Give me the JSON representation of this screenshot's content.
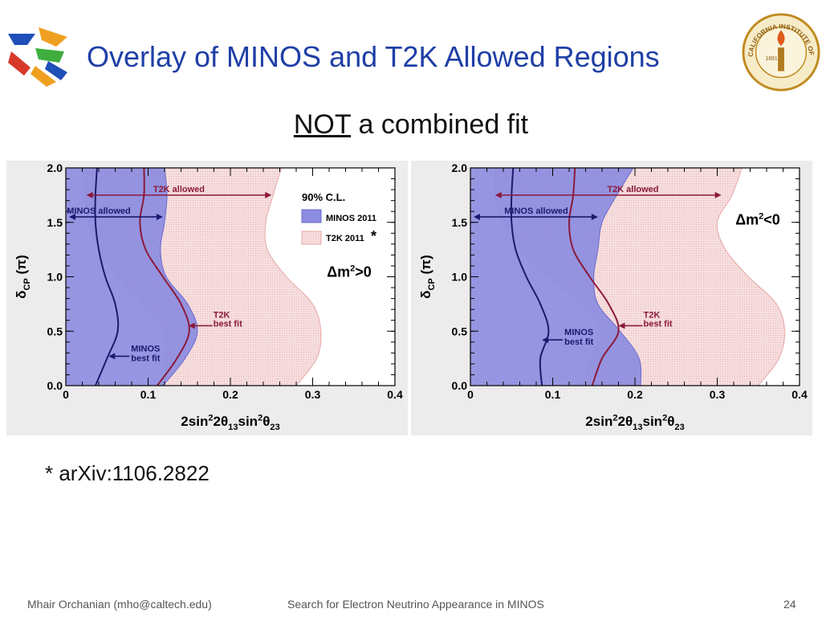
{
  "slide": {
    "title": "Overlay of MINOS and T2K Allowed Regions",
    "subtitle_underlined": "NOT",
    "subtitle_rest": " a combined fit",
    "footnote": "* arXiv:1106.2822",
    "footer": {
      "author": "Mhair Orchanian (mho@caltech.edu)",
      "talk": "Search for Electron Neutrino Appearance in MINOS",
      "page": "24"
    },
    "seal": {
      "text": "CALIFORNIA INSTITUTE OF TECHNOLOGY",
      "year": "1891"
    }
  },
  "colors": {
    "minos_fill": "#8c8ce0",
    "minos_line": "#1a1a6e",
    "t2k_fill": "#f6dede",
    "t2k_edge": "#e8a8a8",
    "t2k_line": "#8b1a3a",
    "title": "#1f3fa6",
    "panel_bg": "#ececec"
  },
  "chart_data": [
    {
      "type": "area",
      "panel": "left",
      "xlabel": "2sin²2θ₁₃sin²θ₂₃",
      "ylabel": "δCP (π)",
      "xlim": [
        0,
        0.4
      ],
      "ylim": [
        0,
        2
      ],
      "xticks": [
        0,
        0.1,
        0.2,
        0.3,
        0.4
      ],
      "xtick_labels": [
        "0",
        "0.1",
        "0.2",
        "0.3",
        "0.4"
      ],
      "yticks": [
        0,
        0.5,
        1.0,
        1.5,
        2.0
      ],
      "ytick_labels": [
        "0.0",
        "0.5",
        "1.0",
        "1.5",
        "2.0"
      ],
      "annotation": "Δm²>0",
      "legend": {
        "position": "top-right",
        "header": "90% C.L.",
        "entries": [
          {
            "label": "MINOS 2011"
          },
          {
            "label": "T2K 2011",
            "suffix": "*"
          }
        ]
      },
      "y": [
        0.0,
        0.25,
        0.5,
        0.75,
        1.0,
        1.25,
        1.5,
        1.75,
        2.0
      ],
      "series": [
        {
          "name": "MINOS 2011",
          "x_low": [
            0.0,
            0.0,
            0.0,
            0.0,
            0.0,
            0.0,
            0.0,
            0.0,
            0.0
          ],
          "x_high": [
            0.118,
            0.145,
            0.16,
            0.148,
            0.122,
            0.115,
            0.12,
            0.123,
            0.12
          ]
        },
        {
          "name": "T2K 2011",
          "x_low": [
            0.12,
            0.121,
            0.12,
            0.095,
            0.063,
            0.04,
            0.028,
            0.024,
            0.025
          ],
          "x_high": [
            0.28,
            0.305,
            0.31,
            0.3,
            0.268,
            0.245,
            0.243,
            0.252,
            0.262
          ]
        }
      ],
      "best_fit": [
        {
          "name": "MINOS best fit",
          "x": [
            0.036,
            0.05,
            0.063,
            0.06,
            0.048,
            0.04,
            0.036,
            0.036,
            0.038
          ]
        },
        {
          "name": "T2K best fit",
          "x": [
            0.111,
            0.135,
            0.15,
            0.14,
            0.118,
            0.097,
            0.09,
            0.095,
            0.095
          ]
        }
      ],
      "labels": {
        "minos_allowed": "MINOS allowed",
        "t2k_allowed": "T2K allowed",
        "minos_best_1": "MINOS",
        "minos_best_2": "best fit",
        "t2k_best_1": "T2K",
        "t2k_best_2": "best fit"
      }
    },
    {
      "type": "area",
      "panel": "right",
      "xlabel": "2sin²2θ₁₃sin²θ₂₃",
      "ylabel": "δCP (π)",
      "xlim": [
        0,
        0.4
      ],
      "ylim": [
        0,
        2
      ],
      "xticks": [
        0,
        0.1,
        0.2,
        0.3,
        0.4
      ],
      "xtick_labels": [
        "0",
        "0.1",
        "0.2",
        "0.3",
        "0.4"
      ],
      "yticks": [
        0,
        0.5,
        1.0,
        1.5,
        2.0
      ],
      "ytick_labels": [
        "0.0",
        "0.5",
        "1.0",
        "1.5",
        "2.0"
      ],
      "annotation": "Δm²<0",
      "y": [
        0.0,
        0.25,
        0.5,
        0.75,
        1.0,
        1.25,
        1.5,
        1.75,
        2.0
      ],
      "series": [
        {
          "name": "MINOS 2011",
          "x_low": [
            0.0,
            0.0,
            0.0,
            0.0,
            0.0,
            0.0,
            0.0,
            0.0,
            0.0
          ],
          "x_high": [
            0.207,
            0.205,
            0.182,
            0.155,
            0.15,
            0.155,
            0.16,
            0.178,
            0.198
          ]
        },
        {
          "name": "T2K 2011",
          "x_low": [
            0.138,
            0.146,
            0.16,
            0.134,
            0.095,
            0.062,
            0.04,
            0.03,
            0.03
          ],
          "x_high": [
            0.35,
            0.375,
            0.382,
            0.372,
            0.338,
            0.31,
            0.3,
            0.318,
            0.33
          ]
        }
      ],
      "best_fit": [
        {
          "name": "MINOS best fit",
          "x": [
            0.087,
            0.085,
            0.095,
            0.085,
            0.068,
            0.055,
            0.05,
            0.05,
            0.052
          ]
        },
        {
          "name": "T2K best fit",
          "x": [
            0.148,
            0.16,
            0.18,
            0.168,
            0.145,
            0.125,
            0.12,
            0.125,
            0.127
          ]
        }
      ],
      "labels": {
        "minos_allowed": "MINOS allowed",
        "t2k_allowed": "T2K allowed",
        "minos_best_1": "MINOS",
        "minos_best_2": "best fit",
        "t2k_best_1": "T2K",
        "t2k_best_2": "best fit"
      }
    }
  ]
}
